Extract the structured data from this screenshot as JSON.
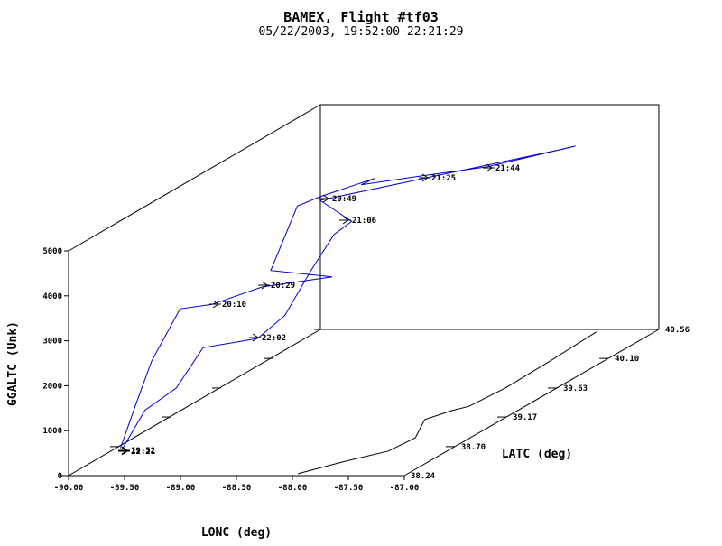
{
  "chart_data": {
    "type": "line3d",
    "title": "BAMEX, Flight #tf03",
    "subtitle": "05/22/2003, 19:52:00-22:21:29",
    "xlabel": "LONC (deg)",
    "ylabel": "LATC (deg)",
    "zlabel": "GGALTC (Unk)",
    "xlim": [
      -90,
      -87
    ],
    "ylim": [
      38.24,
      40.56
    ],
    "zlim": [
      0,
      5000
    ],
    "xticks": [
      {
        "value": -90,
        "label": "-90.00"
      },
      {
        "value": -89.5,
        "label": "-89.50"
      },
      {
        "value": -89,
        "label": "-89.00"
      },
      {
        "value": -88.5,
        "label": "-88.50"
      },
      {
        "value": -88,
        "label": "-88.00"
      },
      {
        "value": -87.5,
        "label": "-87.50"
      },
      {
        "value": -87,
        "label": "-87.00"
      }
    ],
    "yticks": [
      38.24,
      {
        "value": 38.7,
        "label": "38.70"
      },
      39.17,
      39.63,
      {
        "value": 40.1,
        "label": "40.10"
      },
      40.56
    ],
    "zticks": [
      0,
      1000,
      2000,
      3000,
      4000,
      5000
    ],
    "series": [
      {
        "color": "#0000cc",
        "lon": [
          -89.585,
          -89.63,
          -89.6,
          -89.455,
          -89.17,
          -88.84,
          -88.33,
          -88.88,
          -88.975,
          -88.89,
          -88.52,
          -88.64,
          -88.455,
          -88.08,
          -87.52,
          -87.62,
          -88.89,
          -88.49,
          -88.54,
          -88.63,
          -88.755,
          -88.88,
          -89.25,
          -89.38,
          -89.505,
          -89.57
        ],
        "lat": [
          38.29,
          38.47,
          38.59,
          38.7,
          38.7,
          38.82,
          38.94,
          38.94,
          39.28,
          39.4,
          39.52,
          39.52,
          39.86,
          40.1,
          40.33,
          40.33,
          39.4,
          39.28,
          39.17,
          39.05,
          38.94,
          38.82,
          38.7,
          38.59,
          38.43,
          38.29
        ],
        "alt": [
          540,
          1221,
          2062,
          3064,
          3165,
          3384,
          3442,
          3582,
          4540,
          4578,
          4817,
          4677,
          4390,
          4265,
          4402,
          4341,
          4498,
          4199,
          4060,
          3420,
          2578,
          2239,
          2201,
          1460,
          1185,
          518
        ]
      },
      {
        "color": "#000000",
        "lon": [
          -87.98,
          -87.76,
          -87.525,
          -87.49,
          -87.69,
          -87.59,
          -87.5,
          -87.46,
          -87.48,
          -87.52
        ],
        "lat": [
          38.27,
          38.46,
          38.63,
          38.84,
          39.13,
          39.27,
          39.34,
          39.63,
          40.06,
          40.52
        ],
        "alt": [
          0,
          0,
          0,
          0,
          0,
          0,
          0,
          0,
          0,
          0
        ]
      }
    ],
    "annotations": [
      "20:10",
      "20:29",
      "20:49",
      "21:06",
      "21:25",
      "21:44",
      "22:02",
      "19:52",
      "22:21"
    ]
  }
}
